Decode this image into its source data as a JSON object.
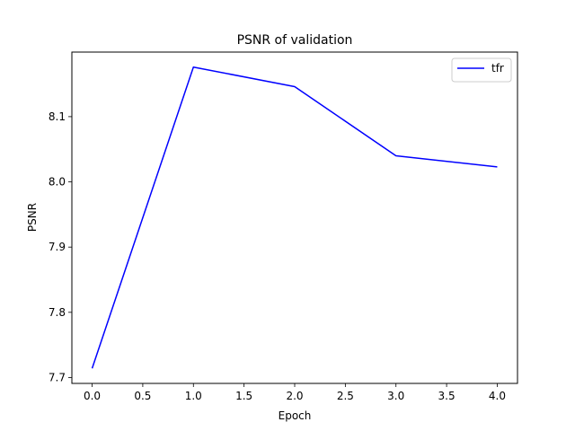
{
  "chart_data": {
    "type": "line",
    "title": "PSNR of validation",
    "xlabel": "Epoch",
    "ylabel": "PSNR",
    "x": [
      0,
      1,
      2,
      3,
      4
    ],
    "series": [
      {
        "name": "tfr",
        "values": [
          7.714,
          8.176,
          8.146,
          8.04,
          8.023
        ],
        "color": "#0000ff"
      }
    ],
    "xlim": [
      -0.2,
      4.2
    ],
    "ylim": [
      7.691,
      8.199
    ],
    "xticks": [
      0,
      0.5,
      1,
      1.5,
      2,
      2.5,
      3,
      3.5,
      4
    ],
    "xtick_labels": [
      "0.0",
      "0.5",
      "1.0",
      "1.5",
      "2.0",
      "2.5",
      "3.0",
      "3.5",
      "4.0"
    ],
    "yticks": [
      7.7,
      7.8,
      7.9,
      8.0,
      8.1
    ],
    "ytick_labels": [
      "7.7",
      "7.8",
      "7.9",
      "8.0",
      "8.1"
    ],
    "grid": false,
    "legend_position": "top-right"
  }
}
